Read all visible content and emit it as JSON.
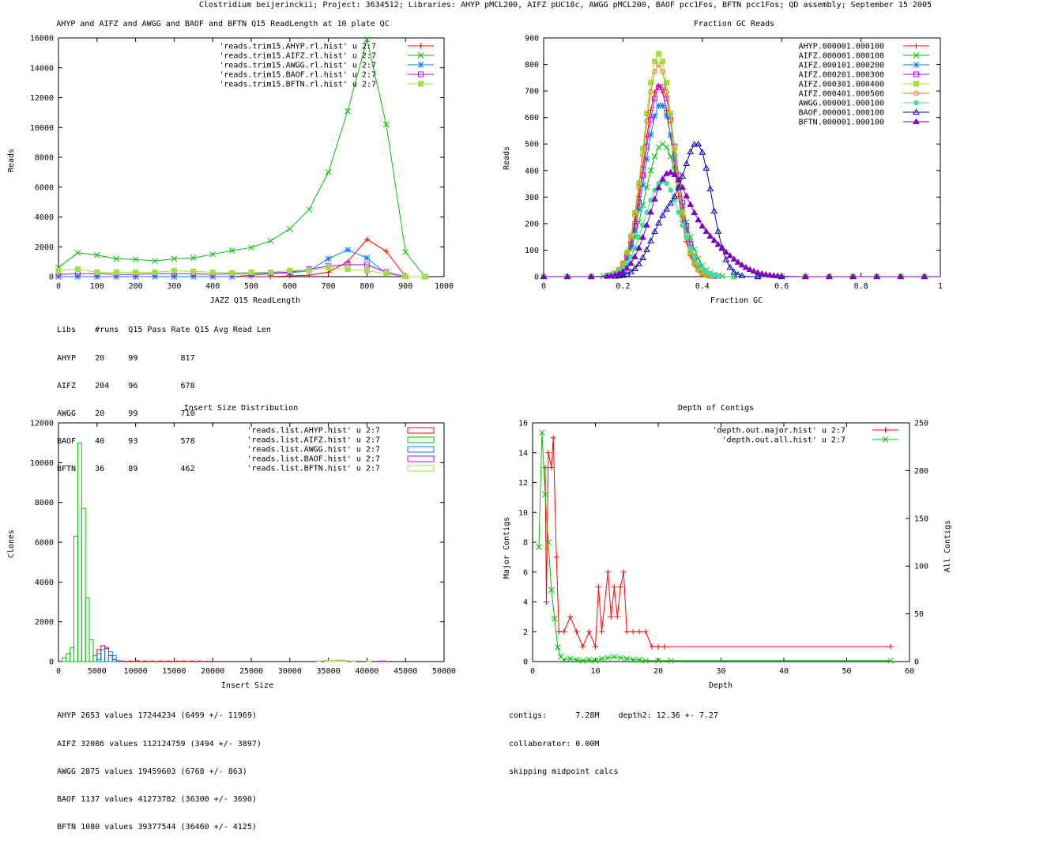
{
  "page_title": "Clostridium beijerinckii; Project: 3634512; Libraries: AHYP pMCL200, AIFZ pUC18c, AWGG pMCL200, BAOF pcc1Fos, BFTN pcc1Fos; QD assembly; September 15 2005",
  "colors": {
    "red": "#ff0000",
    "green": "#00c000",
    "blue": "#0080ff",
    "magenta": "#c000ff",
    "lime": "#a0e040",
    "orange": "#e08000",
    "teal": "#40e0a0",
    "navy": "#0000c0",
    "purple": "#8000c0"
  },
  "chart_data": [
    {
      "type": "line",
      "title": "AHYP and AIFZ and AWGG and BAOF and BFTN Q15 ReadLength at 10 plate QC",
      "xlabel": "JAZZ Q15 ReadLength",
      "ylabel": "Reads",
      "xlim": [
        0,
        1000
      ],
      "ylim": [
        0,
        16000
      ],
      "xticks": [
        "0",
        "100",
        "200",
        "300",
        "400",
        "500",
        "600",
        "700",
        "800",
        "900",
        "1000"
      ],
      "yticks": [
        "0",
        "2000",
        "4000",
        "6000",
        "8000",
        "10000",
        "12000",
        "14000",
        "16000"
      ],
      "legend_position": "top-right",
      "x": [
        0,
        50,
        100,
        150,
        200,
        250,
        300,
        350,
        400,
        450,
        500,
        550,
        600,
        650,
        700,
        750,
        800,
        850,
        900,
        950
      ],
      "series": [
        {
          "name": "'reads.trim15.AHYP.rl.hist' u 2:7",
          "color": "#ff0000",
          "marker": "plus",
          "values": [
            0,
            0,
            0,
            0,
            0,
            0,
            0,
            0,
            0,
            0,
            0,
            0,
            50,
            100,
            300,
            1000,
            2500,
            1700,
            0,
            0
          ]
        },
        {
          "name": "'reads.trim15.AIFZ.rl.hist' u 2:7",
          "color": "#00c000",
          "marker": "x",
          "values": [
            600,
            1600,
            1450,
            1200,
            1150,
            1050,
            1200,
            1250,
            1500,
            1750,
            1950,
            2400,
            3200,
            4500,
            7000,
            11100,
            15900,
            10200,
            1650,
            0
          ]
        },
        {
          "name": "'reads.trim15.AWGG.rl.hist' u 2:7",
          "color": "#0080ff",
          "marker": "star",
          "values": [
            0,
            0,
            0,
            0,
            0,
            0,
            0,
            0,
            0,
            0,
            100,
            200,
            250,
            400,
            1200,
            1800,
            1250,
            200,
            0,
            0
          ]
        },
        {
          "name": "'reads.trim15.BAOF.rl.hist' u 2:7",
          "color": "#c000ff",
          "marker": "box",
          "values": [
            150,
            200,
            200,
            150,
            150,
            200,
            200,
            200,
            150,
            200,
            200,
            250,
            300,
            500,
            700,
            800,
            800,
            300,
            0,
            0
          ]
        },
        {
          "name": "'reads.trim15.BFTN.rl.hist' u 2:7",
          "color": "#a0e040",
          "marker": "fbox",
          "values": [
            400,
            500,
            300,
            300,
            300,
            300,
            400,
            350,
            300,
            250,
            300,
            300,
            400,
            450,
            600,
            500,
            400,
            200,
            0,
            0
          ]
        }
      ],
      "table": {
        "header": [
          "Libs",
          "#runs",
          "Q15 Pass Rate",
          "Q15 Avg Read Len"
        ],
        "rows": [
          [
            "AHYP",
            "20",
            "99",
            "817"
          ],
          [
            "AIFZ",
            "204",
            "96",
            "678"
          ],
          [
            "AWGG",
            "20",
            "99",
            "710"
          ],
          [
            "BAOF",
            "40",
            "93",
            "578"
          ],
          [
            "BFTN",
            "36",
            "89",
            "462"
          ]
        ]
      }
    },
    {
      "type": "line",
      "title": "Fraction GC Reads",
      "xlabel": "Fraction GC",
      "ylabel": "Reads",
      "xlim": [
        0,
        1
      ],
      "ylim": [
        0,
        900
      ],
      "xticks": [
        "0",
        "0.2",
        "0.4",
        "0.6",
        "0.8",
        "1"
      ],
      "yticks": [
        "0",
        "100",
        "200",
        "300",
        "400",
        "500",
        "600",
        "700",
        "800",
        "900"
      ],
      "legend_position": "top-right",
      "series": [
        {
          "name": "AHYP.000001.000100",
          "color": "#ff0000",
          "marker": "plus",
          "mu": 0.29,
          "sigma": 0.038,
          "peak": 720
        },
        {
          "name": "AIFZ.000001.000100",
          "color": "#00c000",
          "marker": "x",
          "mu": 0.3,
          "sigma": 0.045,
          "peak": 500
        },
        {
          "name": "AIFZ.000101.000200",
          "color": "#0080ff",
          "marker": "star",
          "mu": 0.295,
          "sigma": 0.04,
          "peak": 650
        },
        {
          "name": "AIFZ.000201.000300",
          "color": "#c000ff",
          "marker": "box",
          "mu": 0.295,
          "sigma": 0.04,
          "peak": 720
        },
        {
          "name": "AIFZ.000301.000400",
          "color": "#a0e040",
          "marker": "fbox",
          "mu": 0.29,
          "sigma": 0.038,
          "peak": 840
        },
        {
          "name": "AIFZ.000401.000500",
          "color": "#e08000",
          "marker": "circle",
          "mu": 0.29,
          "sigma": 0.038,
          "peak": 800
        },
        {
          "name": "AWGG.000001.000100",
          "color": "#40e0a0",
          "marker": "fcircle",
          "mu": 0.3,
          "sigma": 0.045,
          "peak": 360
        },
        {
          "name": "BAOF.000001.000100",
          "color": "#0000c0",
          "marker": "tri",
          "mu": 0.39,
          "sigma": 0.035,
          "peak": 470,
          "mu2": 0.31,
          "sigma2": 0.04,
          "peak2": 220
        },
        {
          "name": "BFTN.000001.000100",
          "color": "#8000c0",
          "marker": "ftri",
          "mu": 0.31,
          "sigma": 0.045,
          "peak": 310,
          "mu2": 0.39,
          "sigma2": 0.07,
          "peak2": 150
        }
      ]
    },
    {
      "type": "bar",
      "title": "Insert Size Distribution",
      "xlabel": "Insert Size",
      "ylabel": "Clones",
      "xlim": [
        0,
        50000
      ],
      "ylim": [
        0,
        12000
      ],
      "xticks": [
        "0",
        "5000",
        "10000",
        "15000",
        "20000",
        "25000",
        "30000",
        "35000",
        "40000",
        "45000",
        "50000"
      ],
      "yticks": [
        "0",
        "2000",
        "4000",
        "6000",
        "8000",
        "10000",
        "12000"
      ],
      "legend_position": "top-right",
      "bin_width": 500,
      "series": [
        {
          "name": "'reads.list.AHYP.hist' u 2:7",
          "color": "#ff0000",
          "bins": [
            [
              5000,
              600
            ],
            [
              5500,
              800
            ],
            [
              6000,
              650
            ],
            [
              6500,
              300
            ],
            [
              7000,
              100
            ],
            [
              7500,
              30
            ],
            [
              8000,
              30
            ],
            [
              9000,
              30
            ],
            [
              10000,
              40
            ],
            [
              11000,
              30
            ],
            [
              12000,
              30
            ],
            [
              13000,
              30
            ],
            [
              14000,
              30
            ],
            [
              15000,
              30
            ],
            [
              16000,
              30
            ],
            [
              17000,
              30
            ],
            [
              18000,
              30
            ],
            [
              19000,
              20
            ]
          ]
        },
        {
          "name": "'reads.list.AIFZ.hist' u 2:7",
          "color": "#00c000",
          "bins": [
            [
              500,
              200
            ],
            [
              1000,
              400
            ],
            [
              1500,
              700
            ],
            [
              2000,
              6300
            ],
            [
              2500,
              11000
            ],
            [
              3000,
              7700
            ],
            [
              3500,
              3200
            ],
            [
              4000,
              1100
            ],
            [
              4500,
              300
            ],
            [
              5000,
              100
            ]
          ]
        },
        {
          "name": "'reads.list.AWGG.hist' u 2:7",
          "color": "#0080ff",
          "bins": [
            [
              5000,
              400
            ],
            [
              5500,
              600
            ],
            [
              6000,
              700
            ],
            [
              6500,
              500
            ],
            [
              7000,
              300
            ],
            [
              7500,
              50
            ]
          ]
        },
        {
          "name": "'reads.list.BAOF.hist' u 2:7",
          "color": "#c000ff",
          "bins": [
            [
              34500,
              50
            ],
            [
              35500,
              60
            ],
            [
              36000,
              70
            ],
            [
              36500,
              60
            ],
            [
              37000,
              50
            ],
            [
              38000,
              40
            ],
            [
              41500,
              30
            ],
            [
              42000,
              30
            ]
          ]
        },
        {
          "name": "'reads.list.BFTN.hist' u 2:7",
          "color": "#a0e040",
          "bins": [
            [
              33500,
              40
            ],
            [
              34500,
              60
            ],
            [
              35000,
              70
            ],
            [
              35500,
              60
            ],
            [
              36000,
              80
            ],
            [
              36500,
              70
            ],
            [
              37000,
              60
            ],
            [
              38000,
              40
            ],
            [
              40000,
              30
            ]
          ]
        }
      ],
      "stats": [
        "AHYP 2653 values 17244234 (6499 +/- 11969)",
        "AIFZ 32086 values 112124759 (3494 +/- 3897)",
        "AWGG 2875 values 19459603 (6768 +/- 863)",
        "BAOF 1137 values 41273782 (36300 +/- 3690)",
        "BFTN 1080 values 39377544 (36460 +/- 4125)"
      ]
    },
    {
      "type": "line",
      "title": "Depth of Contigs",
      "xlabel": "Depth",
      "ylabel": "Major Contigs",
      "y2label": "All Contigs",
      "xlim": [
        0,
        60
      ],
      "ylim": [
        0,
        16
      ],
      "y2lim": [
        0,
        250
      ],
      "xticks": [
        "0",
        "10",
        "20",
        "30",
        "40",
        "50",
        "60"
      ],
      "yticks": [
        "0",
        "2",
        "4",
        "6",
        "8",
        "10",
        "12",
        "14",
        "16"
      ],
      "y2ticks": [
        "0",
        "50",
        "100",
        "150",
        "200",
        "250"
      ],
      "legend_position": "top-right",
      "series": [
        {
          "name": "'depth.out.major.hist' u 2:7",
          "color": "#ff0000",
          "marker": "plus",
          "axis": "y",
          "points": [
            [
              2,
              13
            ],
            [
              2.2,
              4
            ],
            [
              2.5,
              14
            ],
            [
              3,
              13
            ],
            [
              3.3,
              15
            ],
            [
              3.8,
              7
            ],
            [
              4.2,
              2
            ],
            [
              5,
              2
            ],
            [
              6,
              3
            ],
            [
              7,
              2
            ],
            [
              8,
              1
            ],
            [
              9,
              2
            ],
            [
              10,
              1
            ],
            [
              10.5,
              5
            ],
            [
              11,
              2
            ],
            [
              12,
              6
            ],
            [
              12.5,
              3
            ],
            [
              13,
              5
            ],
            [
              13.5,
              3
            ],
            [
              14,
              5
            ],
            [
              14.5,
              6
            ],
            [
              15,
              2
            ],
            [
              16,
              2
            ],
            [
              17,
              2
            ],
            [
              18,
              2
            ],
            [
              19,
              1
            ],
            [
              20,
              1
            ],
            [
              21,
              1
            ],
            [
              57,
              1
            ]
          ]
        },
        {
          "name": "'depth.out.all.hist' u 2:7",
          "color": "#00c000",
          "marker": "x",
          "axis": "y2",
          "points": [
            [
              1,
              120
            ],
            [
              1.5,
              240
            ],
            [
              2,
              175
            ],
            [
              2.5,
              125
            ],
            [
              3,
              75
            ],
            [
              3.5,
              45
            ],
            [
              4,
              15
            ],
            [
              4.5,
              5
            ],
            [
              5,
              2
            ],
            [
              6,
              3
            ],
            [
              7,
              2
            ],
            [
              8,
              1
            ],
            [
              9,
              2
            ],
            [
              10,
              1
            ],
            [
              11,
              3
            ],
            [
              12,
              4
            ],
            [
              13,
              5
            ],
            [
              14,
              4
            ],
            [
              15,
              3
            ],
            [
              16,
              2
            ],
            [
              17,
              2
            ],
            [
              18,
              1
            ],
            [
              20,
              1
            ],
            [
              22,
              1
            ],
            [
              57,
              1
            ]
          ]
        }
      ],
      "notes": [
        "contigs:      7.28M    depth2: 12.36 +- 7.27",
        "collaborator: 0.00M",
        "skipping midpoint calcs"
      ]
    }
  ]
}
